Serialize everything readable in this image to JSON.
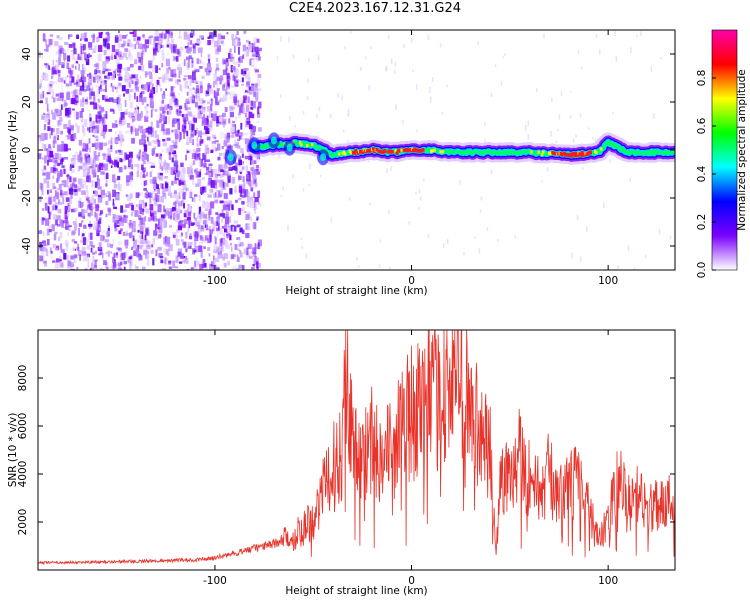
{
  "page": {
    "title": "C2E4.2023.167.12.31.G24"
  },
  "chart_data": [
    {
      "type": "heatmap",
      "xlabel": "Height of straight line (km)",
      "ylabel": "Frequency (Hz)",
      "xlim": [
        -190,
        134
      ],
      "ylim": [
        -50,
        50
      ],
      "xticks": [
        -100,
        0,
        100
      ],
      "yticks": [
        -40,
        -20,
        0,
        20,
        40
      ],
      "colorbar": {
        "label": "Normalized spectral amplitude",
        "range": [
          0,
          1
        ],
        "ticks": [
          "0.0",
          "0.2",
          "0.4",
          "0.6",
          "0.8"
        ],
        "colors": [
          "#ffffff",
          "#7b00ff",
          "#0000ff",
          "#00ffff",
          "#00ff00",
          "#ffff00",
          "#ff0000",
          "#ff00aa"
        ]
      },
      "noise_region_x": [
        -190,
        -78
      ],
      "ridge": {
        "x": [
          -80,
          -70,
          -60,
          -50,
          -40,
          -30,
          -20,
          -10,
          0,
          10,
          20,
          40,
          60,
          80,
          95,
          100,
          110,
          134
        ],
        "frequency": [
          1,
          2,
          3,
          2,
          -2,
          -1,
          0,
          -1,
          0,
          0,
          -1,
          -1,
          -1,
          -2,
          -1,
          3,
          -1,
          -1
        ],
        "amplitude": [
          0.35,
          0.55,
          0.65,
          0.6,
          0.55,
          0.8,
          0.9,
          0.85,
          0.95,
          0.7,
          0.55,
          0.5,
          0.6,
          0.95,
          0.75,
          0.6,
          0.5,
          0.45
        ]
      }
    },
    {
      "type": "line",
      "xlabel": "Height of straight line (km)",
      "ylabel": "SNR (10 * v/v)",
      "xlim": [
        -190,
        134
      ],
      "ylim": [
        0,
        10000
      ],
      "xticks": [
        -100,
        0,
        100
      ],
      "yticks": [
        2000,
        4000,
        6000,
        8000
      ],
      "color": "#e8332a",
      "series": [
        {
          "x": [
            -190,
            -170,
            -150,
            -130,
            -110,
            -100,
            -90,
            -80,
            -70,
            -60,
            -50,
            -45,
            -40,
            -35,
            -33,
            -30,
            -25,
            -20,
            -15,
            -10,
            -5,
            0,
            5,
            10,
            15,
            20,
            25,
            30,
            35,
            40,
            43,
            45,
            50,
            55,
            60,
            65,
            70,
            75,
            80,
            85,
            90,
            95,
            100,
            105,
            110,
            115,
            120,
            125,
            130,
            134
          ],
          "y": [
            300,
            320,
            350,
            380,
            420,
            500,
            700,
            900,
            1100,
            1400,
            2200,
            3200,
            4200,
            5200,
            9800,
            5000,
            4500,
            5500,
            4800,
            5000,
            6000,
            6500,
            7000,
            7200,
            7500,
            7800,
            8200,
            7000,
            5500,
            4800,
            700,
            3500,
            4200,
            5000,
            3800,
            3300,
            4000,
            3000,
            3400,
            3800,
            2600,
            1200,
            2000,
            3800,
            2700,
            3100,
            2400,
            2900,
            2700,
            3200
          ]
        }
      ]
    }
  ]
}
